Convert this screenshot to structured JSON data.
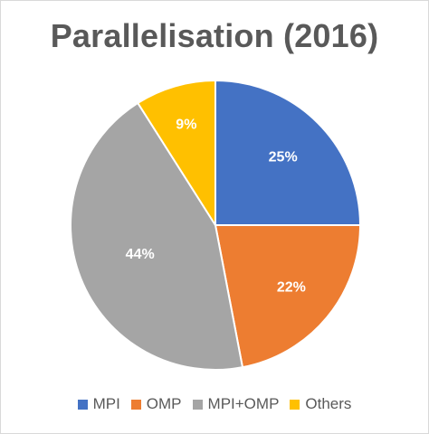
{
  "chart_data": {
    "type": "pie",
    "title": "Parallelisation (2016)",
    "categories": [
      "MPI",
      "OMP",
      "MPI+OMP",
      "Others"
    ],
    "values": [
      25,
      22,
      44,
      9
    ],
    "labels": [
      "25%",
      "22%",
      "44%",
      "9%"
    ],
    "colors": [
      "#4472C4",
      "#ED7D31",
      "#A5A5A5",
      "#FFC000"
    ],
    "start_angle": "top, clockwise",
    "legend_position": "bottom"
  }
}
